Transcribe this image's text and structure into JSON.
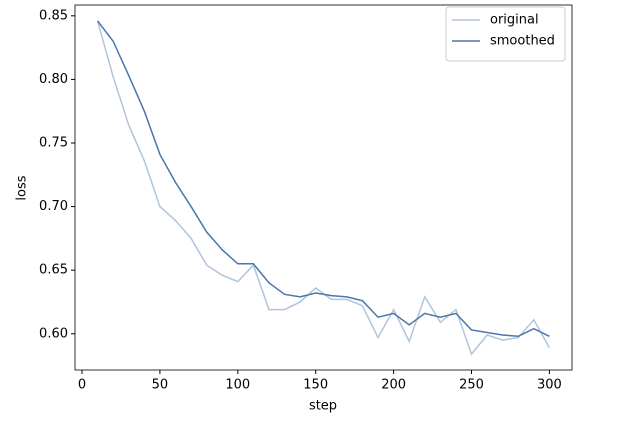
{
  "chart_data": {
    "type": "line",
    "x": [
      10,
      20,
      30,
      40,
      50,
      60,
      70,
      80,
      90,
      100,
      110,
      120,
      130,
      140,
      150,
      160,
      170,
      180,
      190,
      200,
      210,
      220,
      230,
      240,
      250,
      260,
      270,
      280,
      290,
      300
    ],
    "series": [
      {
        "name": "original",
        "color": "#b0c4de",
        "values": [
          0.846,
          0.802,
          0.764,
          0.736,
          0.7,
          0.689,
          0.675,
          0.654,
          0.646,
          0.641,
          0.654,
          0.619,
          0.619,
          0.625,
          0.636,
          0.627,
          0.627,
          0.622,
          0.597,
          0.619,
          0.594,
          0.629,
          0.609,
          0.619,
          0.584,
          0.599,
          0.595,
          0.597,
          0.611,
          0.589
        ]
      },
      {
        "name": "smoothed",
        "color": "#4a76a8",
        "values": [
          0.846,
          0.83,
          0.803,
          0.775,
          0.741,
          0.719,
          0.7,
          0.68,
          0.666,
          0.655,
          0.655,
          0.64,
          0.631,
          0.629,
          0.632,
          0.63,
          0.629,
          0.626,
          0.613,
          0.616,
          0.607,
          0.616,
          0.613,
          0.616,
          0.603,
          0.601,
          0.599,
          0.598,
          0.604,
          0.598
        ]
      }
    ],
    "xlabel": "step",
    "ylabel": "loss",
    "xlim": [
      -4.5,
      314.5
    ],
    "ylim": [
      0.5715,
      0.8585
    ],
    "xticks": [
      0,
      50,
      100,
      150,
      200,
      250,
      300
    ],
    "yticks": [
      {
        "value": 0.6,
        "label": "0.60"
      },
      0.65,
      {
        "value": 0.7,
        "label": "0.70"
      },
      0.75,
      {
        "value": 0.8,
        "label": "0.80"
      },
      0.85
    ],
    "legend": "upper right"
  }
}
